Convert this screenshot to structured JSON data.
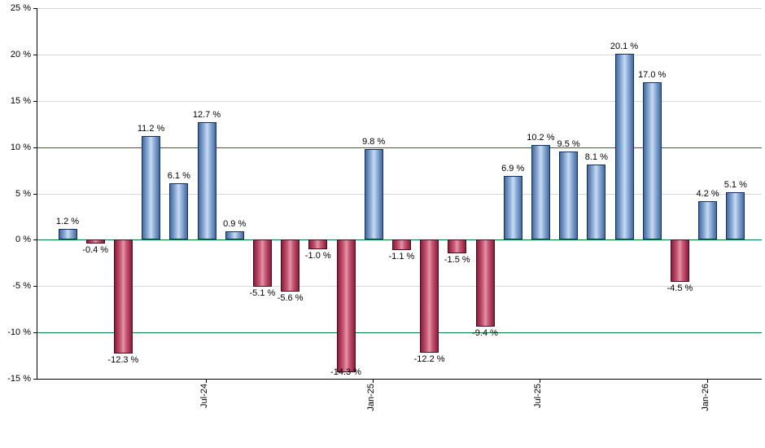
{
  "chart_data": {
    "type": "bar",
    "title": "",
    "xlabel": "",
    "ylabel": "",
    "unit": "%",
    "ylim": [
      -15,
      25
    ],
    "yticks": [
      25,
      20,
      15,
      10,
      5,
      0,
      -5,
      -10,
      -15
    ],
    "ytick_labels": [
      "25 %",
      "20 %",
      "15 %",
      "10 %",
      "5 %",
      "0 %",
      "-5 %",
      "-10 %",
      "-15 %"
    ],
    "reference_lines": [
      10,
      0,
      -10
    ],
    "grid": true,
    "values": [
      1.2,
      -0.4,
      -12.3,
      11.2,
      6.1,
      12.7,
      0.9,
      -5.1,
      -5.6,
      -1.0,
      -14.3,
      9.8,
      -1.1,
      -12.2,
      -1.5,
      -9.4,
      6.9,
      10.2,
      9.5,
      8.1,
      20.1,
      17.0,
      -4.5,
      4.2,
      5.1
    ],
    "value_labels": [
      "1.2 %",
      "-0.4 %",
      "-12.3 %",
      "11.2 %",
      "6.1 %",
      "12.7 %",
      "0.9 %",
      "-5.1 %",
      "-5.6 %",
      "-1.0 %",
      "-14.3 %",
      "9.8 %",
      "-1.1 %",
      "-12.2 %",
      "-1.5 %",
      "-9.4 %",
      "6.9 %",
      "10.2 %",
      "9.5 %",
      "8.1 %",
      "20.1 %",
      "17.0 %",
      "-4.5 %",
      "4.2 %",
      "5.1 %"
    ],
    "xticks": [
      {
        "index": 5,
        "label": "Jul-24"
      },
      {
        "index": 11,
        "label": "Jan-25"
      },
      {
        "index": 17,
        "label": "Jul-25"
      },
      {
        "index": 23,
        "label": "Jan-26"
      }
    ],
    "colors": {
      "positive_edge": "#46699e",
      "positive_fill": "#8fb0da",
      "positive_highlight": "#c9dbf2",
      "positive_border": "#12305e",
      "negative_edge": "#8a1c3c",
      "negative_fill": "#c75672",
      "negative_highlight": "#e295aa",
      "negative_border": "#450f23",
      "reference_line": "#008040",
      "gridline": "#d8d8d8",
      "axis": "#000000",
      "background": "#ffffff"
    }
  }
}
